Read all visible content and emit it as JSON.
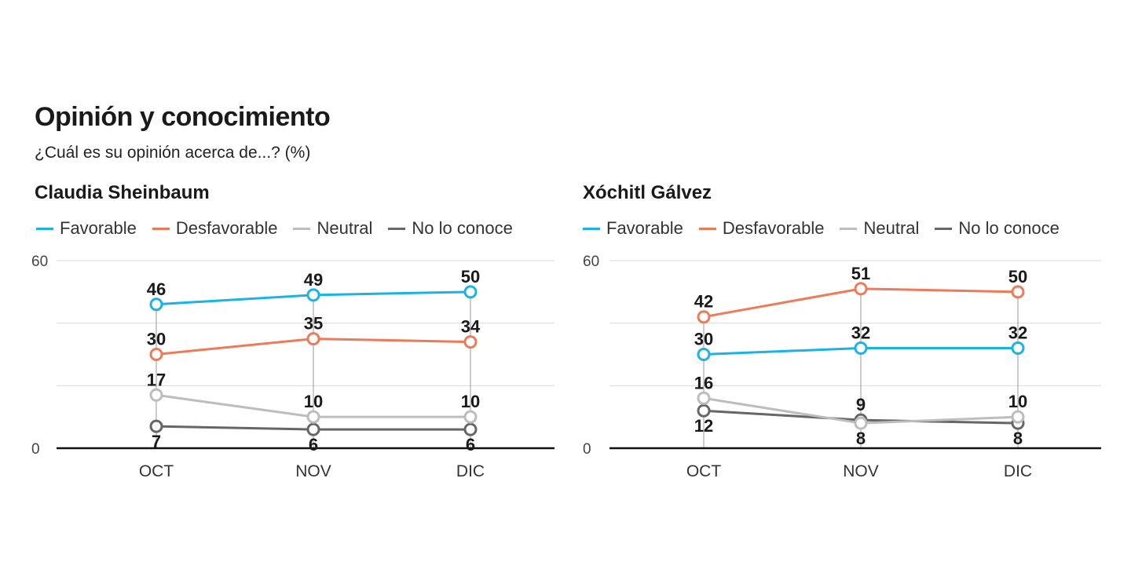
{
  "title": "Opinión y conocimiento",
  "subtitle": "¿Cuál es su opinión acerca de...? (%)",
  "colors": {
    "favorable": "#1ab3e6",
    "desfavorable": "#ef7a57",
    "neutral": "#bdbdbd",
    "no_lo_conoce": "#666666"
  },
  "legend": [
    "Favorable",
    "Desfavorable",
    "Neutral",
    "No lo conoce"
  ],
  "chart_data": [
    {
      "type": "line",
      "title": "Claudia Sheinbaum",
      "categories": [
        "OCT",
        "NOV",
        "DIC"
      ],
      "ylim": [
        0,
        60
      ],
      "yticks": [
        "0",
        "60"
      ],
      "grid": true,
      "legend_position": "top",
      "series": [
        {
          "name": "Favorable",
          "values": [
            46,
            49,
            50
          ]
        },
        {
          "name": "Desfavorable",
          "values": [
            30,
            35,
            34
          ]
        },
        {
          "name": "Neutral",
          "values": [
            17,
            10,
            10
          ]
        },
        {
          "name": "No lo conoce",
          "values": [
            7,
            6,
            6
          ]
        }
      ]
    },
    {
      "type": "line",
      "title": "Xóchitl Gálvez",
      "categories": [
        "OCT",
        "NOV",
        "DIC"
      ],
      "ylim": [
        0,
        60
      ],
      "yticks": [
        "0",
        "60"
      ],
      "grid": true,
      "legend_position": "top",
      "series": [
        {
          "name": "Favorable",
          "values": [
            30,
            32,
            32
          ]
        },
        {
          "name": "Desfavorable",
          "values": [
            42,
            51,
            50
          ]
        },
        {
          "name": "Neutral",
          "values": [
            16,
            8,
            10
          ]
        },
        {
          "name": "No lo conoce",
          "values": [
            12,
            9,
            8
          ]
        }
      ]
    }
  ]
}
